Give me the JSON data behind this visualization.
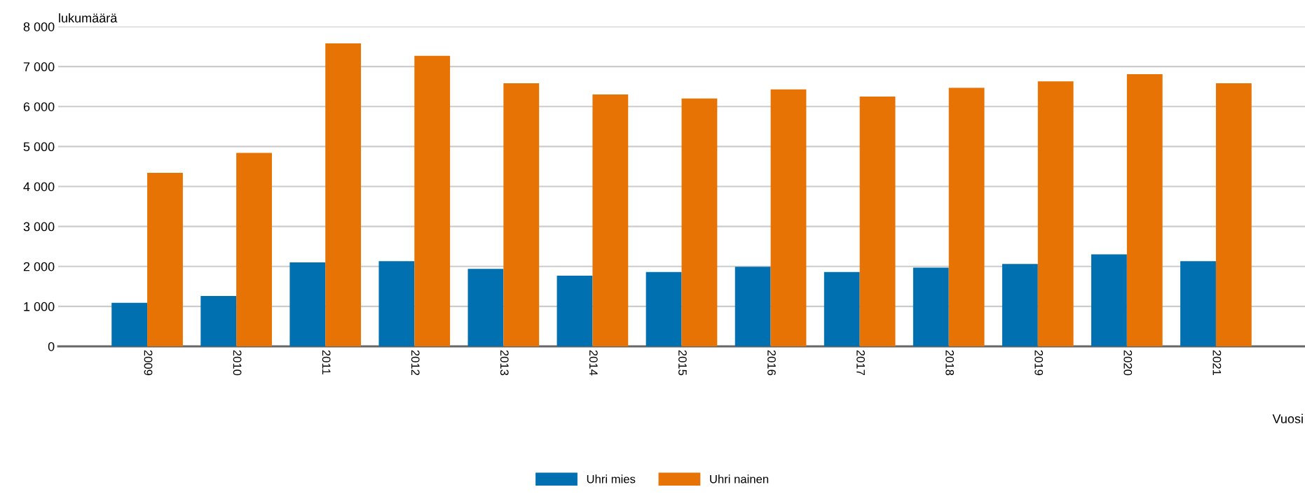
{
  "chart_data": {
    "type": "bar",
    "ylabel": "lukumäärä",
    "xlabel": "Vuosi",
    "categories": [
      "2009",
      "2010",
      "2011",
      "2012",
      "2013",
      "2014",
      "2015",
      "2016",
      "2017",
      "2018",
      "2019",
      "2020",
      "2021"
    ],
    "series": [
      {
        "name": "Uhri mies",
        "color": "#0070b0",
        "values": [
          1090,
          1260,
          2100,
          2130,
          1940,
          1770,
          1860,
          1990,
          1860,
          1970,
          2060,
          2300,
          2130
        ]
      },
      {
        "name": "Uhri nainen",
        "color": "#e87305",
        "values": [
          4340,
          4840,
          7580,
          7270,
          6580,
          6300,
          6200,
          6430,
          6250,
          6470,
          6630,
          6810,
          6580
        ]
      }
    ],
    "ylim": [
      0,
      8000
    ],
    "yticks": [
      0,
      {
        "value": 1000,
        "label": "1 000"
      },
      {
        "value": 2000,
        "label": "2 000"
      },
      {
        "value": 3000,
        "label": "3 000"
      },
      {
        "value": 4000,
        "label": "4 000"
      },
      {
        "value": 5000,
        "label": "5 000"
      },
      {
        "value": 6000,
        "label": "6 000"
      },
      {
        "value": 7000,
        "label": "7 000"
      },
      {
        "value": 8000,
        "label": "8 000"
      }
    ],
    "grid": "y",
    "legend": "bottom"
  }
}
